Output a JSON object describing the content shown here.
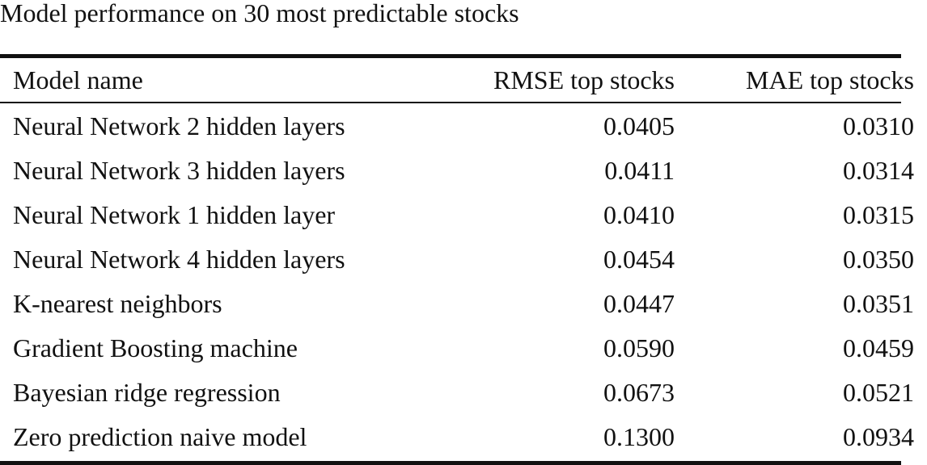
{
  "caption": "Model performance on 30 most predictable stocks",
  "columns": {
    "name": "Model name",
    "rmse": "RMSE top stocks",
    "mae": "MAE top stocks"
  },
  "rows": [
    {
      "name": "Neural Network 2 hidden layers",
      "rmse": "0.0405",
      "mae": "0.0310"
    },
    {
      "name": "Neural Network 3 hidden layers",
      "rmse": "0.0411",
      "mae": "0.0314"
    },
    {
      "name": "Neural Network 1 hidden layer",
      "rmse": "0.0410",
      "mae": "0.0315"
    },
    {
      "name": "Neural Network 4 hidden layers",
      "rmse": "0.0454",
      "mae": "0.0350"
    },
    {
      "name": "K-nearest neighbors",
      "rmse": "0.0447",
      "mae": "0.0351"
    },
    {
      "name": "Gradient Boosting machine",
      "rmse": "0.0590",
      "mae": "0.0459"
    },
    {
      "name": "Bayesian ridge regression",
      "rmse": "0.0673",
      "mae": "0.0521"
    },
    {
      "name": "Zero prediction naive model",
      "rmse": "0.1300",
      "mae": "0.0934"
    }
  ]
}
